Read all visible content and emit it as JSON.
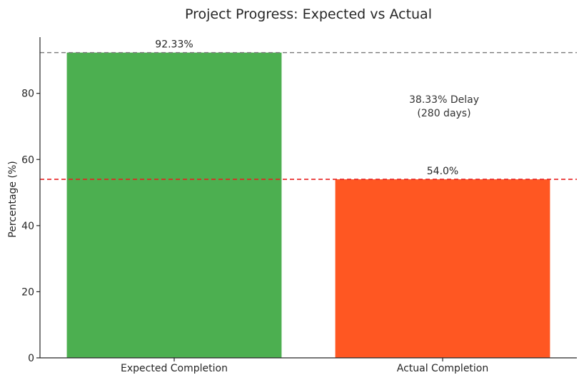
{
  "chart_data": {
    "type": "bar",
    "title": "Project Progress: Expected vs Actual",
    "xlabel": "",
    "ylabel": "Percentage (%)",
    "categories": [
      "Expected Completion",
      "Actual Completion"
    ],
    "values": [
      92.33,
      54.0
    ],
    "data_labels": [
      "92.33%",
      "54.0%"
    ],
    "colors": [
      "#4caf50",
      "#ff5722"
    ],
    "ylim": [
      0,
      97
    ],
    "yticks": [
      0,
      20,
      40,
      60,
      80
    ],
    "grid": false,
    "legend": "none",
    "reference_lines": [
      {
        "value": 92.33,
        "color": "#808080",
        "style": "dashed"
      },
      {
        "value": 54.0,
        "color": "#e82020",
        "style": "dashed"
      }
    ],
    "annotation": {
      "line1": "38.33% Delay",
      "line2": "(280 days)"
    }
  }
}
